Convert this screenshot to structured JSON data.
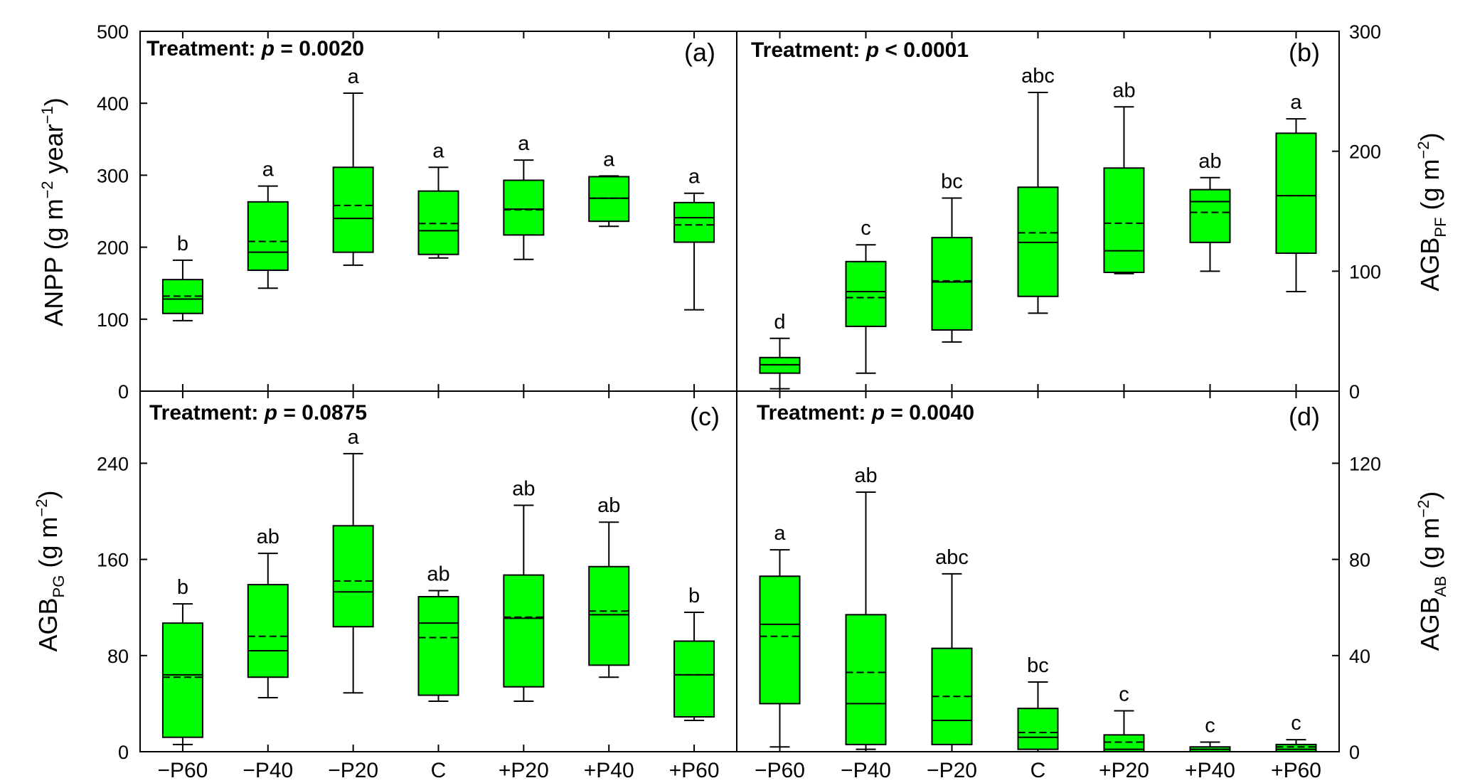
{
  "chart_data": {
    "type": "boxplot",
    "categories": [
      "−P60",
      "−P40",
      "−P20",
      "C",
      "+P20",
      "+P40",
      "+P60"
    ],
    "box_fill": "#00ff00",
    "panels": [
      {
        "id": "a",
        "panel_label": "(a)",
        "title_prefix": "Treatment:",
        "p_symbol": "p",
        "p_text": "= 0.0020",
        "ylabel_text": "ANPP (g m",
        "ylabel_exp1": "−2",
        "ylabel_mid": " year",
        "ylabel_exp2": "−1",
        "ylabel_end": ")",
        "ylim": [
          0,
          500
        ],
        "yticks": [
          "0",
          "100",
          "200",
          "300",
          "400",
          "500"
        ],
        "boxes": [
          {
            "category": "−P60",
            "min": 98,
            "q1": 108,
            "median": 128,
            "mean": 132,
            "q3": 155,
            "max": 182,
            "sig": "b"
          },
          {
            "category": "−P40",
            "min": 143,
            "q1": 168,
            "median": 193,
            "mean": 208,
            "q3": 263,
            "max": 285,
            "sig": "a"
          },
          {
            "category": "−P20",
            "min": 175,
            "q1": 193,
            "median": 240,
            "mean": 258,
            "q3": 311,
            "max": 414,
            "sig": "a"
          },
          {
            "category": "C",
            "min": 185,
            "q1": 190,
            "median": 223,
            "mean": 233,
            "q3": 278,
            "max": 311,
            "sig": "a"
          },
          {
            "category": "+P20",
            "min": 183,
            "q1": 217,
            "median": 253,
            "mean": 252,
            "q3": 293,
            "max": 321,
            "sig": "a"
          },
          {
            "category": "+P40",
            "min": 229,
            "q1": 236,
            "median": 268,
            "mean": 268,
            "q3": 298,
            "max": 299,
            "sig": "a"
          },
          {
            "category": "+P60",
            "min": 113,
            "q1": 207,
            "median": 241,
            "mean": 231,
            "q3": 262,
            "max": 275,
            "sig": "a"
          }
        ]
      },
      {
        "id": "b",
        "panel_label": "(b)",
        "title_prefix": "Treatment:",
        "p_symbol": "p",
        "p_text": "< 0.0001",
        "ylabel_text": "AGB",
        "ylabel_sub": "PF",
        "ylabel_unit": " (g m",
        "ylabel_exp": "−2",
        "ylabel_end": ")",
        "ylim": [
          0,
          300
        ],
        "yticks": [
          "0",
          "100",
          "200",
          "300"
        ],
        "boxes": [
          {
            "category": "−P60",
            "min": 2,
            "q1": 15,
            "median": 22,
            "mean": 22,
            "q3": 28,
            "max": 44,
            "sig": "d"
          },
          {
            "category": "−P40",
            "min": 15,
            "q1": 54,
            "median": 83,
            "mean": 78,
            "q3": 108,
            "max": 122,
            "sig": "c"
          },
          {
            "category": "−P20",
            "min": 41,
            "q1": 51,
            "median": 91,
            "mean": 92,
            "q3": 128,
            "max": 161,
            "sig": "bc"
          },
          {
            "category": "C",
            "min": 65,
            "q1": 79,
            "median": 124,
            "mean": 132,
            "q3": 170,
            "max": 249,
            "sig": "abc"
          },
          {
            "category": "+P20",
            "min": 98,
            "q1": 99,
            "median": 117,
            "mean": 140,
            "q3": 186,
            "max": 237,
            "sig": "ab"
          },
          {
            "category": "+P40",
            "min": 100,
            "q1": 124,
            "median": 158,
            "mean": 149,
            "q3": 168,
            "max": 178,
            "sig": "ab"
          },
          {
            "category": "+P60",
            "min": 83,
            "q1": 115,
            "median": 163,
            "mean": 163,
            "q3": 215,
            "max": 227,
            "sig": "a"
          }
        ]
      },
      {
        "id": "c",
        "panel_label": "(c)",
        "title_prefix": "Treatment:",
        "p_symbol": "p",
        "p_text": "= 0.0875",
        "ylabel_text": "AGB",
        "ylabel_sub": "PG",
        "ylabel_unit": " (g m",
        "ylabel_exp": "−2",
        "ylabel_end": ")",
        "ylim": [
          0,
          300
        ],
        "yticks": [
          "0",
          "80",
          "160",
          "240"
        ],
        "boxes": [
          {
            "category": "−P60",
            "min": 6,
            "q1": 12,
            "median": 64,
            "mean": 62,
            "q3": 107,
            "max": 123,
            "sig": "b"
          },
          {
            "category": "−P40",
            "min": 45,
            "q1": 62,
            "median": 84,
            "mean": 96,
            "q3": 139,
            "max": 165,
            "sig": "ab"
          },
          {
            "category": "−P20",
            "min": 49,
            "q1": 104,
            "median": 133,
            "mean": 142,
            "q3": 188,
            "max": 248,
            "sig": "a"
          },
          {
            "category": "C",
            "min": 42,
            "q1": 47,
            "median": 107,
            "mean": 95,
            "q3": 129,
            "max": 134,
            "sig": "ab"
          },
          {
            "category": "+P20",
            "min": 42,
            "q1": 54,
            "median": 111,
            "mean": 112,
            "q3": 147,
            "max": 205,
            "sig": "ab"
          },
          {
            "category": "+P40",
            "min": 62,
            "q1": 72,
            "median": 114,
            "mean": 117,
            "q3": 154,
            "max": 191,
            "sig": "ab"
          },
          {
            "category": "+P60",
            "min": 26,
            "q1": 29,
            "median": 64,
            "mean": 64,
            "q3": 92,
            "max": 116,
            "sig": "b"
          }
        ]
      },
      {
        "id": "d",
        "panel_label": "(d)",
        "title_prefix": "Treatment:",
        "p_symbol": "p",
        "p_text": "= 0.0040",
        "ylabel_text": "AGB",
        "ylabel_sub": "AB",
        "ylabel_unit": " (g m",
        "ylabel_exp": "−2",
        "ylabel_end": ")",
        "ylim": [
          0,
          150
        ],
        "yticks": [
          "0",
          "40",
          "80",
          "120"
        ],
        "boxes": [
          {
            "category": "−P60",
            "min": 2,
            "q1": 20,
            "median": 53,
            "mean": 48,
            "q3": 73,
            "max": 84,
            "sig": "a"
          },
          {
            "category": "−P40",
            "min": 1,
            "q1": 3,
            "median": 20,
            "mean": 33,
            "q3": 57,
            "max": 108,
            "sig": "ab"
          },
          {
            "category": "−P20",
            "min": 0,
            "q1": 3,
            "median": 13,
            "mean": 23,
            "q3": 43,
            "max": 74,
            "sig": "abc"
          },
          {
            "category": "C",
            "min": 0,
            "q1": 1,
            "median": 6,
            "mean": 8,
            "q3": 18,
            "max": 29,
            "sig": "bc"
          },
          {
            "category": "+P20",
            "min": 0,
            "q1": 0,
            "median": 1,
            "mean": 4,
            "q3": 7,
            "max": 17,
            "sig": "c"
          },
          {
            "category": "+P40",
            "min": 0,
            "q1": 0,
            "median": 1,
            "mean": 1,
            "q3": 2,
            "max": 4,
            "sig": "c"
          },
          {
            "category": "+P60",
            "min": 0,
            "q1": 0,
            "median": 1,
            "mean": 2,
            "q3": 3,
            "max": 5,
            "sig": "c"
          }
        ]
      }
    ]
  }
}
